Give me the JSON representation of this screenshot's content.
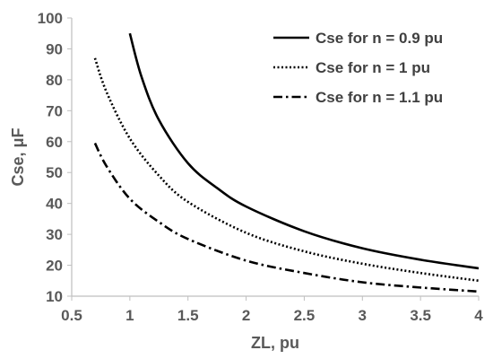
{
  "chart_data": {
    "type": "line",
    "title": "",
    "xlabel": "ZL, pu",
    "ylabel": "Cse, μF",
    "xlim": [
      0.5,
      4
    ],
    "ylim": [
      10,
      100
    ],
    "x_ticks": [
      "0.5",
      "1",
      "1.5",
      "2",
      "2.5",
      "3",
      "3.5",
      "4"
    ],
    "y_ticks": [
      "10",
      "20",
      "30",
      "40",
      "50",
      "60",
      "70",
      "80",
      "90",
      "100"
    ],
    "grid": false,
    "legend_position": "top-right",
    "series": [
      {
        "name": "Cse for n = 0.9 pu",
        "line_style": "solid",
        "color": "#000000",
        "x": [
          1.0,
          1.1,
          1.25,
          1.5,
          1.75,
          2.0,
          2.5,
          3.0,
          3.5,
          4.0
        ],
        "y": [
          95.0,
          81.0,
          67.0,
          53.0,
          45.0,
          39.0,
          31.0,
          25.5,
          21.8,
          19.0
        ]
      },
      {
        "name": "Cse for n = 1 pu",
        "line_style": "dotted",
        "color": "#000000",
        "x": [
          0.7,
          0.8,
          1.0,
          1.25,
          1.5,
          2.0,
          2.5,
          3.0,
          3.5,
          4.0
        ],
        "y": [
          87.0,
          76.0,
          61.0,
          49.0,
          40.5,
          30.5,
          24.5,
          20.5,
          17.5,
          15.0
        ]
      },
      {
        "name": "Cse for n = 1.1 pu",
        "line_style": "dashdot",
        "color": "#000000",
        "x": [
          0.7,
          0.8,
          1.0,
          1.25,
          1.5,
          2.0,
          2.5,
          3.0,
          3.5,
          4.0
        ],
        "y": [
          59.5,
          52.0,
          41.5,
          34.0,
          28.5,
          21.5,
          17.5,
          14.5,
          12.8,
          11.5
        ]
      }
    ]
  }
}
